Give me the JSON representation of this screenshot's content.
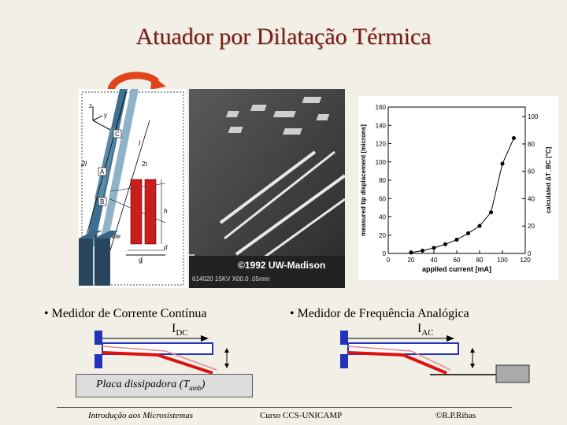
{
  "slide": {
    "title": "Atuador por Dilatação Térmica"
  },
  "figure_left": {
    "labels": {
      "x": "x",
      "y": "y",
      "z": "z",
      "c": "C",
      "a": "A",
      "b": "B",
      "two_l": "2l",
      "l": "l",
      "two_t": "2t",
      "h": "h",
      "d": "d",
      "g": "g",
      "substrate": "substrate"
    }
  },
  "figure_mid": {
    "copyright": "©1992 UW-Madison",
    "sem_info": "614020  15KV  X00.0  .05mm"
  },
  "chart_data": {
    "type": "scatter",
    "xlabel": "applied current [mA]",
    "ylabel": "measured tip displacement [microns]",
    "y2label": "calculated ΔT_BC [°C]",
    "xlim": [
      0,
      120
    ],
    "ylim": [
      0,
      160
    ],
    "y2lim": [
      0,
      107
    ],
    "x_ticks": [
      "0",
      "20",
      "40",
      "60",
      "80",
      "100",
      "120"
    ],
    "y_ticks": [
      "0",
      "20",
      "40",
      "60",
      "80",
      "100",
      "120",
      "140",
      "160"
    ],
    "y2_ticks": [
      "0",
      "20",
      "40",
      "60",
      "80",
      "100"
    ],
    "grid": false,
    "series": [
      {
        "points": [
          {
            "x": 20,
            "y": 1
          },
          {
            "x": 30,
            "y": 3
          },
          {
            "x": 40,
            "y": 6
          },
          {
            "x": 50,
            "y": 10
          },
          {
            "x": 60,
            "y": 15
          },
          {
            "x": 70,
            "y": 22
          },
          {
            "x": 80,
            "y": 30
          },
          {
            "x": 90,
            "y": 45
          },
          {
            "x": 100,
            "y": 98
          },
          {
            "x": 110,
            "y": 126
          }
        ]
      }
    ]
  },
  "bullets": {
    "left": {
      "text": "• Medidor de Corrente Contínua",
      "symbol": "I",
      "sub": "DC"
    },
    "right": {
      "text": "• Medidor de Frequência Analógica",
      "symbol": "I",
      "sub": "AC"
    }
  },
  "heat_sink": {
    "label": "Placa dissipadora (T",
    "sub": "amb",
    "close": ")"
  },
  "footer": {
    "left": "Introdução aos Microsistemas",
    "center": "Curso CCS-UNICAMP",
    "right": "©R.P.Ribas"
  },
  "colors": {
    "title": "#7a1a1a",
    "anchor_blue": "#2233bb",
    "beam_red": "#dd1111",
    "arrow_orange": "#e0441a"
  }
}
